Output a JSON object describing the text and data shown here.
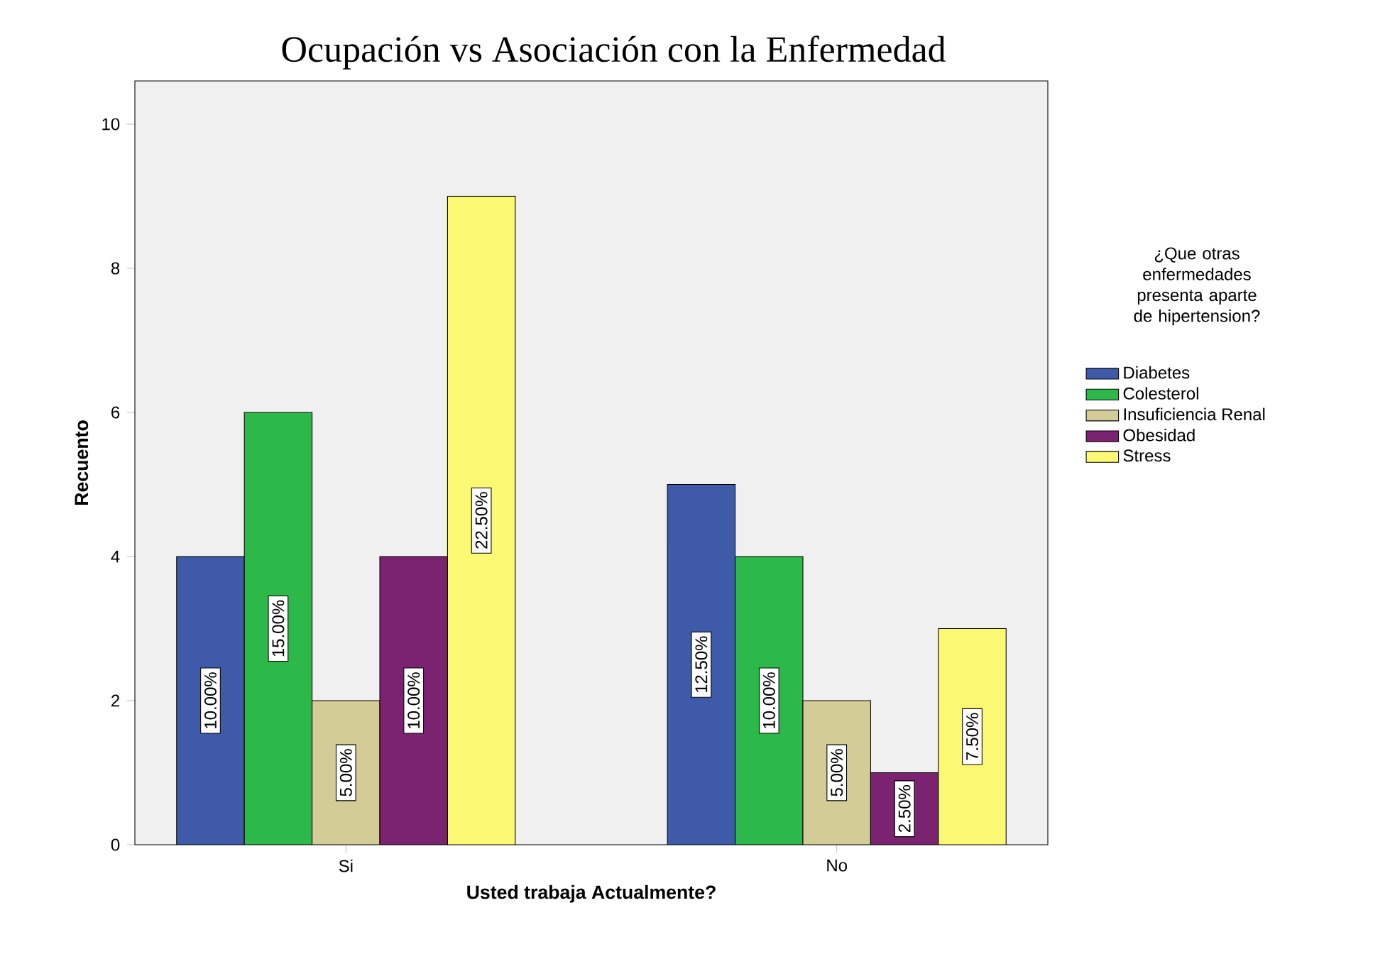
{
  "chart_data": {
    "type": "bar",
    "title": "Ocupación vs Asociación con la Enfermedad",
    "xlabel": "Usted trabaja Actualmente?",
    "ylabel": "Recuento",
    "legend_title": "¿Que otras enfermedades presenta aparte de hipertension?",
    "categories": [
      "Si",
      "No"
    ],
    "series": [
      {
        "name": "Diabetes",
        "color": "#3e5aa8",
        "values": [
          4,
          5
        ]
      },
      {
        "name": "Colesterol",
        "color": "#2db84a",
        "values": [
          6,
          4
        ]
      },
      {
        "name": "Insuficiencia Renal",
        "color": "#d4cc96",
        "values": [
          2,
          2
        ]
      },
      {
        "name": "Obesidad",
        "color": "#7b2370",
        "values": [
          4,
          1
        ]
      },
      {
        "name": "Stress",
        "color": "#fbf873",
        "values": [
          9,
          3
        ]
      }
    ],
    "annotations": [
      "10.00%",
      "15.00%",
      "5.00%",
      "10.00%",
      "22.50%",
      "12.50%",
      "10.00%",
      "5.00%",
      "2.50%",
      "7.50%"
    ],
    "ylim": [
      0,
      10.6
    ],
    "yticks": [
      0,
      2,
      4,
      6,
      8,
      10
    ],
    "grid": false,
    "legend": "right"
  }
}
